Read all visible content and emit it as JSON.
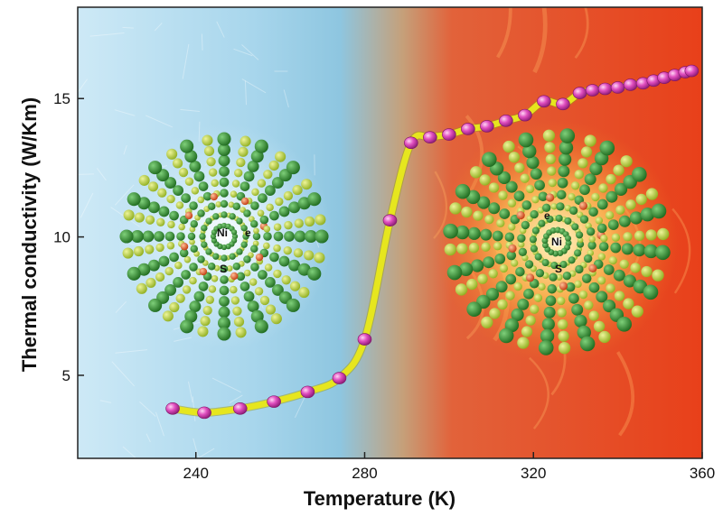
{
  "chart_data": {
    "type": "line",
    "title": "",
    "xlabel": "Temperature (K)",
    "ylabel": "Thermal conductivity (W/Km)",
    "xlim": [
      212,
      360
    ],
    "ylim": [
      2,
      18.3
    ],
    "x_ticks": [
      240,
      280,
      320,
      360
    ],
    "y_ticks": [
      5,
      10,
      15
    ],
    "grid": false,
    "legend": "none",
    "series": [
      {
        "color": "#e14fc0",
        "line_color": "#e6e61e",
        "x": [
          234.5,
          242,
          250.5,
          258.5,
          266.5,
          274,
          280,
          286,
          291,
          295.5,
          300,
          304.5,
          309,
          313.5,
          318,
          322.5,
          327,
          331,
          334,
          337,
          340,
          343,
          346,
          348.5,
          351,
          353.5,
          356,
          357.5
        ],
        "y": [
          3.8,
          3.65,
          3.8,
          4.05,
          4.4,
          4.9,
          6.3,
          10.6,
          13.4,
          13.6,
          13.7,
          13.9,
          14.0,
          14.2,
          14.4,
          14.9,
          14.8,
          15.2,
          15.3,
          15.35,
          15.4,
          15.5,
          15.55,
          15.65,
          15.75,
          15.85,
          15.95,
          16.0
        ]
      }
    ]
  },
  "insets": {
    "left": {
      "ni": "Ni",
      "e": "e",
      "s": "S"
    },
    "right": {
      "ni": "Ni",
      "e": "e",
      "s": "S"
    }
  },
  "colors": {
    "cold": "#a9d7ee",
    "hot": "#ea4a1c",
    "marker": "#e14fc0",
    "curve": "#e6e61e",
    "spoke": "#2f8a2a",
    "satellite": "#b6d13a",
    "electron": "#e5541c"
  }
}
